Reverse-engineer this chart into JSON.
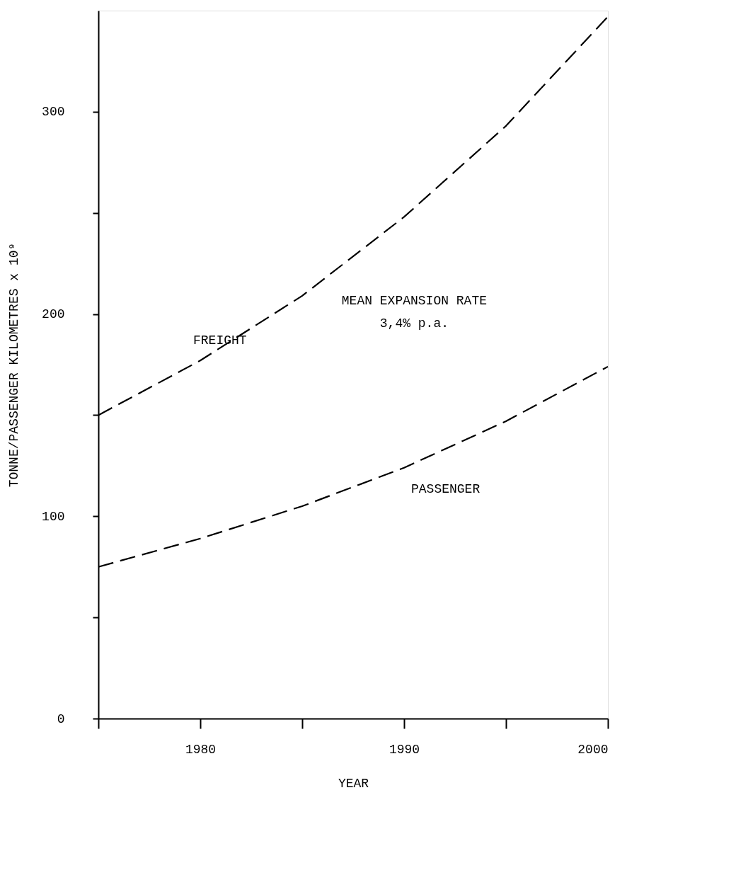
{
  "chart_data": {
    "type": "line",
    "xlabel": "YEAR",
    "ylabel": "TONNE/PASSENGER KILOMETRES x 10⁹",
    "x": [
      1975,
      1980,
      1985,
      1990,
      1995,
      2000
    ],
    "series": [
      {
        "name": "FREIGHT",
        "color": "#000000",
        "line_style": "dashed",
        "values": [
          150,
          177,
          209,
          248,
          293,
          347
        ]
      },
      {
        "name": "PASSENGER",
        "color": "#000000",
        "line_style": "dashed",
        "values": [
          75,
          89,
          105,
          124,
          147,
          174
        ]
      }
    ],
    "annotations": [
      "MEAN EXPANSION RATE",
      "3,4% p.a."
    ],
    "xlim": [
      1975,
      2000
    ],
    "xticks": [
      {
        "value": 1975,
        "label": null
      },
      1980,
      {
        "value": 1985,
        "label": null
      },
      1990,
      {
        "value": 1995,
        "label": null
      },
      2000
    ],
    "ylim": [
      0,
      350
    ],
    "yticks": [
      0,
      {
        "value": 50,
        "label": null
      },
      100,
      {
        "value": 150,
        "label": null
      },
      200,
      {
        "value": 250,
        "label": null
      },
      300
    ],
    "grid": false,
    "marker": "none"
  }
}
